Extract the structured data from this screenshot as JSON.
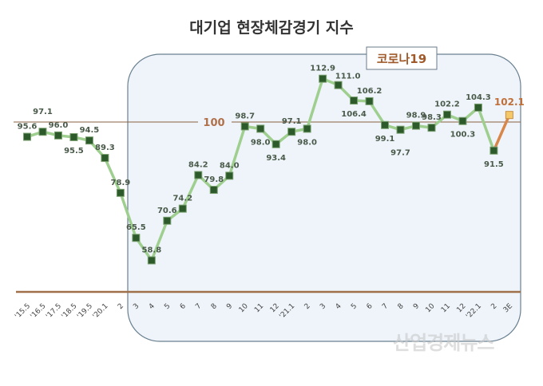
{
  "chart_data": {
    "type": "line",
    "title": "대기업 현장체감경기 지수",
    "categories": [
      "'15.5",
      "'16.5",
      "'17.5",
      "'18.5",
      "'19.5",
      "'20.1",
      "2",
      "3",
      "4",
      "5",
      "6",
      "7",
      "8",
      "9",
      "10",
      "11",
      "12",
      "'21.1",
      "2",
      "3",
      "4",
      "5",
      "6",
      "7",
      "8",
      "9",
      "10",
      "11",
      "12",
      "'22.1",
      "2",
      "3E"
    ],
    "values": [
      95.6,
      97.1,
      96.0,
      95.5,
      94.5,
      89.3,
      78.9,
      65.5,
      58.8,
      70.6,
      74.2,
      84.2,
      79.8,
      84.0,
      98.7,
      98.0,
      93.4,
      97.1,
      98.0,
      112.9,
      111.0,
      106.4,
      106.2,
      99.1,
      97.7,
      98.9,
      98.3,
      102.2,
      100.3,
      104.3,
      91.5,
      102.1
    ],
    "labels": [
      "95.6",
      "97.1",
      "96.0",
      "95.5",
      "94.5",
      "89.3",
      "78.9",
      "65.5",
      "58.8",
      "70.6",
      "74.2",
      "84.2",
      "79.8",
      "84.0",
      "98.7",
      "98.0",
      "93.4",
      "97.1",
      "98.0",
      "112.9",
      "111.0",
      "106.4",
      "106.2",
      "99.1",
      "97.7",
      "98.9",
      "98.3",
      "102.2",
      "100.3",
      "104.3",
      "91.5",
      "102.1"
    ],
    "reference_line": {
      "value": 100,
      "label": "100"
    },
    "annotation": "코로나19",
    "ylim": [
      50,
      120
    ],
    "grid": false,
    "colors": {
      "line": "#9fcf8f",
      "marker": "#2d5a2a",
      "estimate_line": "#d9864a",
      "estimate_marker": "#f5c96a",
      "reference": "#8a6040",
      "highlight_box": "#eef4fa",
      "estimate_label": "#c0703a"
    }
  },
  "watermark": "산업경제뉴스"
}
